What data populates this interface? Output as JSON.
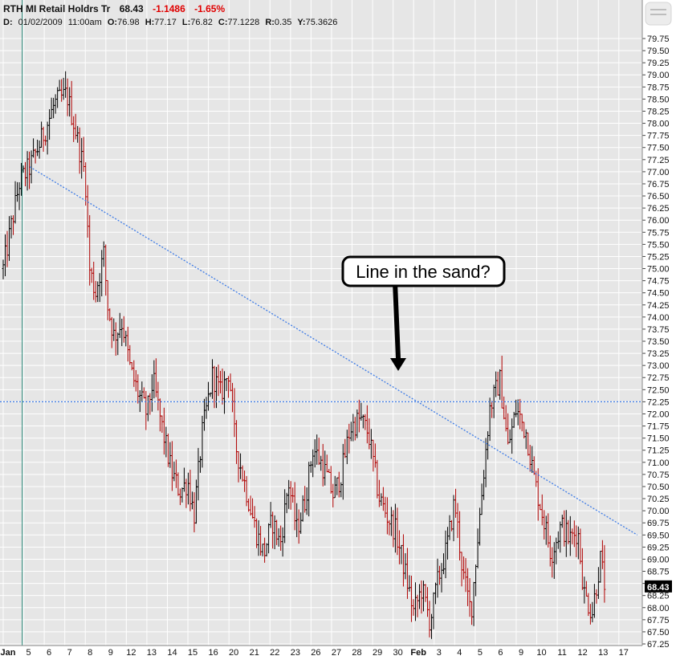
{
  "header": {
    "symbol_line": "RTH MI Retail Holdrs Tr",
    "last": "68.43",
    "change": "-1.1486",
    "change_pct": "-1.65%",
    "d_label": "D:",
    "date": "01/02/2009",
    "time": "11:00am",
    "o_label": "O:",
    "o_value": "76.98",
    "h_label": "H:",
    "h_value": "77.17",
    "l_label": "L:",
    "l_value": "76.82",
    "c_label": "C:",
    "c_value": "77.1228",
    "r_label": "R:",
    "r_value": "0.35",
    "y_label": "Y:",
    "y_value": "75.3626"
  },
  "callout": {
    "text": "Line in the sand?"
  },
  "last_price_label": "68.43",
  "colors": {
    "background": "#e6e6e6",
    "grid": "#ffffff",
    "up_bar": "#000000",
    "down_bar": "#b00000",
    "trendline": "#3d7be6",
    "cursor_line": "#2a8a7a",
    "last_label_bg": "#000000",
    "negative_change": "#e00000"
  },
  "chart_data": {
    "type": "bar",
    "subtype": "ohlc",
    "ylim": [
      67.25,
      79.75
    ],
    "yticks": [
      "67.25",
      "67.50",
      "67.75",
      "68.00",
      "68.25",
      "68.50",
      "68.75",
      "69.00",
      "69.25",
      "69.50",
      "69.75",
      "70.00",
      "70.25",
      "70.50",
      "70.75",
      "71.00",
      "71.25",
      "71.50",
      "71.75",
      "72.00",
      "72.25",
      "72.50",
      "72.75",
      "73.00",
      "73.25",
      "73.50",
      "73.75",
      "74.00",
      "74.25",
      "74.50",
      "74.75",
      "75.00",
      "75.25",
      "75.50",
      "75.75",
      "76.00",
      "76.25",
      "76.50",
      "76.75",
      "77.00",
      "77.25",
      "77.50",
      "77.75",
      "78.00",
      "78.25",
      "78.50",
      "78.75",
      "79.00",
      "79.25",
      "79.50",
      "79.75"
    ],
    "xticks": [
      {
        "label": "Jan",
        "bold": true
      },
      {
        "label": "5"
      },
      {
        "label": "6"
      },
      {
        "label": "7"
      },
      {
        "label": "8"
      },
      {
        "label": "9"
      },
      {
        "label": "12"
      },
      {
        "label": "13"
      },
      {
        "label": "14"
      },
      {
        "label": "15"
      },
      {
        "label": "16"
      },
      {
        "label": "20"
      },
      {
        "label": "21"
      },
      {
        "label": "22"
      },
      {
        "label": "23"
      },
      {
        "label": "26"
      },
      {
        "label": "27"
      },
      {
        "label": "28"
      },
      {
        "label": "29"
      },
      {
        "label": "30"
      },
      {
        "label": "Feb",
        "bold": true
      },
      {
        "label": "3"
      },
      {
        "label": "4"
      },
      {
        "label": "5"
      },
      {
        "label": "6"
      },
      {
        "label": "9"
      },
      {
        "label": "10"
      },
      {
        "label": "11"
      },
      {
        "label": "12"
      },
      {
        "label": "13"
      },
      {
        "label": "17"
      }
    ],
    "grid": true,
    "anchors": [
      [
        0,
        75.0
      ],
      [
        0.8,
        76.8
      ],
      [
        1.3,
        77.1
      ],
      [
        1.9,
        77.7
      ],
      [
        2.5,
        78.4
      ],
      [
        3.1,
        78.6
      ],
      [
        3.5,
        77.9
      ],
      [
        4.0,
        76.9
      ],
      [
        4.2,
        75.0
      ],
      [
        4.5,
        74.5
      ],
      [
        4.9,
        75.3
      ],
      [
        5.1,
        74.2
      ],
      [
        5.4,
        73.6
      ],
      [
        5.8,
        73.9
      ],
      [
        6.2,
        72.9
      ],
      [
        6.6,
        72.4
      ],
      [
        7.0,
        72.0
      ],
      [
        7.3,
        72.7
      ],
      [
        7.7,
        71.8
      ],
      [
        8.2,
        70.8
      ],
      [
        8.6,
        70.4
      ],
      [
        9.0,
        70.6
      ],
      [
        9.3,
        69.9
      ],
      [
        9.7,
        71.6
      ],
      [
        10.2,
        72.8
      ],
      [
        10.6,
        72.4
      ],
      [
        11.0,
        72.9
      ],
      [
        11.3,
        71.4
      ],
      [
        11.8,
        70.5
      ],
      [
        12.3,
        69.6
      ],
      [
        12.7,
        69.1
      ],
      [
        13.1,
        69.8
      ],
      [
        13.5,
        69.3
      ],
      [
        13.9,
        70.6
      ],
      [
        14.3,
        69.6
      ],
      [
        14.7,
        70.2
      ],
      [
        15.1,
        71.3
      ],
      [
        15.6,
        70.9
      ],
      [
        16.1,
        70.3
      ],
      [
        16.5,
        70.8
      ],
      [
        16.9,
        71.7
      ],
      [
        17.4,
        71.9
      ],
      [
        17.8,
        71.6
      ],
      [
        18.3,
        70.3
      ],
      [
        18.7,
        69.9
      ],
      [
        19.1,
        69.6
      ],
      [
        19.5,
        68.9
      ],
      [
        20.0,
        67.9
      ],
      [
        20.4,
        68.4
      ],
      [
        20.8,
        67.7
      ],
      [
        21.2,
        68.6
      ],
      [
        21.6,
        69.2
      ],
      [
        22.0,
        70.2
      ],
      [
        22.4,
        68.7
      ],
      [
        22.8,
        67.9
      ],
      [
        23.2,
        69.8
      ],
      [
        23.7,
        72.1
      ],
      [
        24.2,
        72.7
      ],
      [
        24.6,
        71.3
      ],
      [
        25.0,
        72.1
      ],
      [
        25.5,
        71.6
      ],
      [
        25.9,
        70.6
      ],
      [
        26.3,
        69.9
      ],
      [
        26.7,
        69.1
      ],
      [
        27.2,
        69.7
      ],
      [
        27.6,
        69.4
      ],
      [
        28.0,
        69.6
      ],
      [
        28.3,
        68.3
      ],
      [
        28.7,
        67.9
      ],
      [
        29.1,
        69.0
      ],
      [
        29.3,
        68.5
      ]
    ],
    "bar_count": 300,
    "last_price": 68.43,
    "annotations": [
      {
        "type": "trendline",
        "from": {
          "x": 1.3,
          "y": 77.1
        },
        "to": {
          "x": 30.9,
          "y": 69.5
        },
        "style": "dotted"
      },
      {
        "type": "horizontal",
        "y": 72.25,
        "style": "dotted"
      },
      {
        "type": "vertical",
        "x": 0.3,
        "style": "solid"
      },
      {
        "type": "callout",
        "text": "Line in the sand?",
        "arrow_to": {
          "x": 18.8,
          "y": 72.6
        }
      }
    ]
  }
}
